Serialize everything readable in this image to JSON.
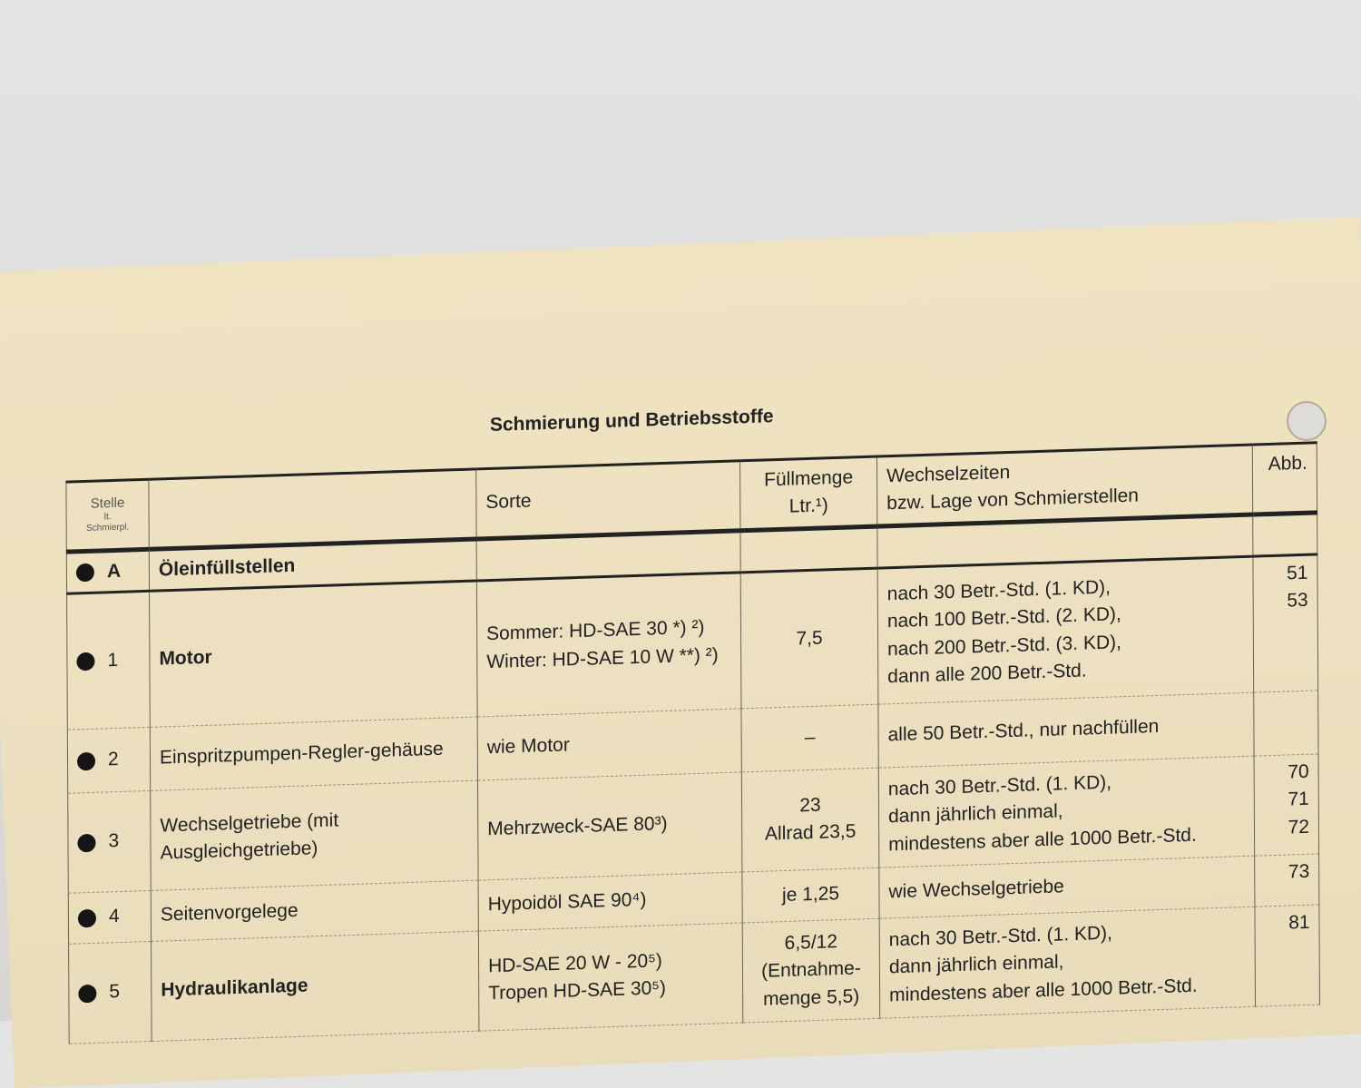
{
  "title": "Schmierung und Betriebsstoffe",
  "header": {
    "stelle": "Stelle",
    "stelle_sub1": "lt.",
    "stelle_sub2": "Schmierpl.",
    "sorte": "Sorte",
    "fuellmenge": "Füllmenge",
    "fuellmenge_unit": "Ltr.¹)",
    "wechsel1": "Wechselzeiten",
    "wechsel2": "bzw. Lage von Schmierstellen",
    "abb": "Abb."
  },
  "section": {
    "id": "A",
    "label": "Öleinfüllstellen"
  },
  "rows": [
    {
      "id": "1",
      "name": "Motor",
      "sorte": [
        "Sommer: HD-SAE 30 *) ²)",
        "Winter: HD-SAE 10 W **) ²)"
      ],
      "menge": "7,5",
      "wechsel": [
        "nach 30 Betr.-Std. (1. KD),",
        "nach 100 Betr.-Std. (2. KD),",
        "nach 200 Betr.-Std. (3. KD),",
        "dann alle 200 Betr.-Std."
      ],
      "abb": "51\n53"
    },
    {
      "id": "2",
      "name": "Einspritzpumpen-Regler-gehäuse",
      "sorte": [
        "wie Motor"
      ],
      "menge": "–",
      "wechsel": [
        "alle 50 Betr.-Std., nur nachfüllen"
      ],
      "abb": ""
    },
    {
      "id": "3",
      "name": "Wechselgetriebe (mit Ausgleichgetriebe)",
      "sorte": [
        "Mehrzweck-SAE 80³)"
      ],
      "menge": "23\nAllrad 23,5",
      "wechsel": [
        "nach 30 Betr.-Std. (1. KD),",
        "dann jährlich einmal,",
        "mindestens aber alle 1000 Betr.-Std."
      ],
      "abb": "70\n71\n72"
    },
    {
      "id": "4",
      "name": "Seitenvorgelege",
      "sorte": [
        "Hypoidöl SAE 90⁴)"
      ],
      "menge": "je 1,25",
      "wechsel": [
        "wie Wechselgetriebe"
      ],
      "abb": "73"
    },
    {
      "id": "5",
      "name": "Hydraulikanlage",
      "sorte": [
        "HD-SAE 20 W - 20⁵)",
        "Tropen HD-SAE 30⁵)"
      ],
      "menge": "6,5/12\n(Entnahme-\nmenge 5,5)",
      "wechsel": [
        "nach 30 Betr.-Std. (1. KD),",
        "dann jährlich einmal,",
        "mindestens aber alle 1000 Betr.-Std."
      ],
      "abb": "81"
    }
  ],
  "colors": {
    "paper": "#efe3c3",
    "ink": "#222222",
    "background": "#e0e0de"
  }
}
